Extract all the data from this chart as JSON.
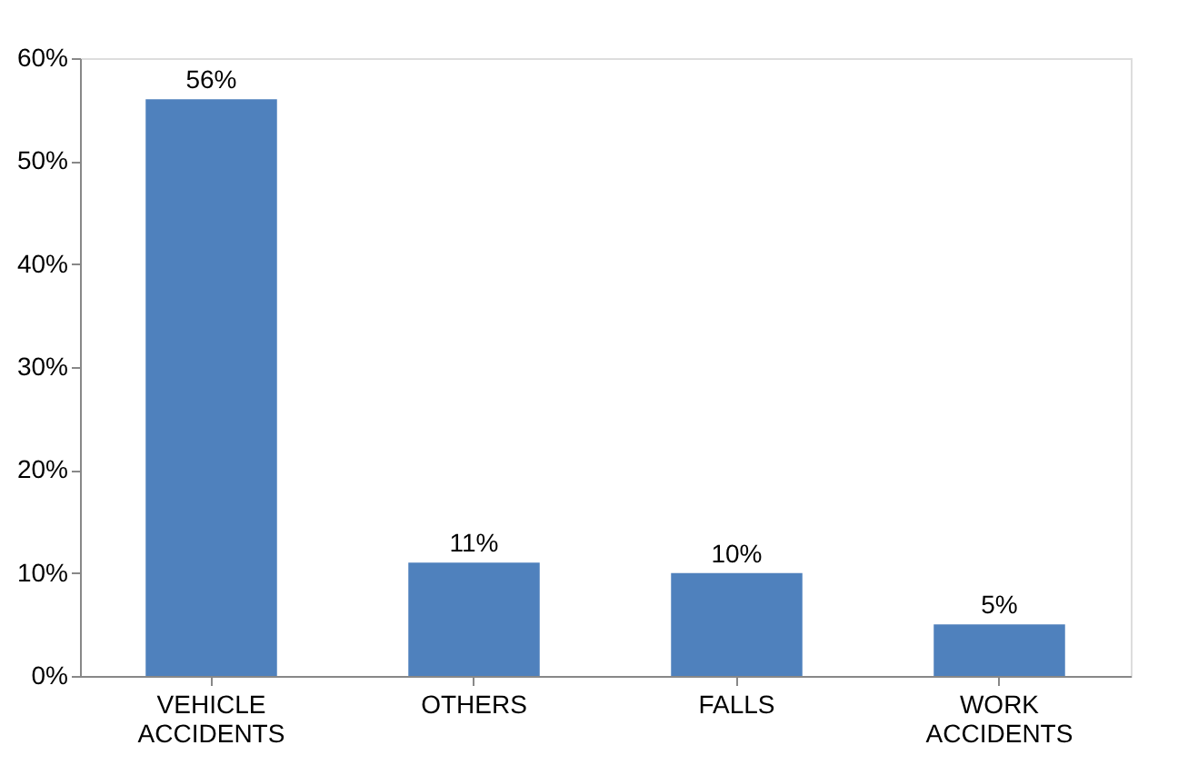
{
  "chart_data": {
    "type": "bar",
    "categories": [
      "VEHICLE ACCIDENTS",
      "OTHERS",
      "FALLS",
      "WORK ACCIDENTS"
    ],
    "values": [
      56,
      11,
      10,
      5
    ],
    "color": "#4f81bd",
    "value_labels": [
      "56%",
      "11%",
      "10%",
      "5%"
    ],
    "ylim": [
      0,
      60
    ],
    "yticks": [
      {
        "value": 0,
        "label": "0%"
      },
      {
        "value": 10,
        "label": "10%"
      },
      {
        "value": 20,
        "label": "20%"
      },
      {
        "value": 30,
        "label": "30%"
      },
      {
        "value": 40,
        "label": "40%"
      },
      {
        "value": 50,
        "label": "50%"
      },
      {
        "value": 60,
        "label": "60%"
      }
    ],
    "grid": false
  }
}
